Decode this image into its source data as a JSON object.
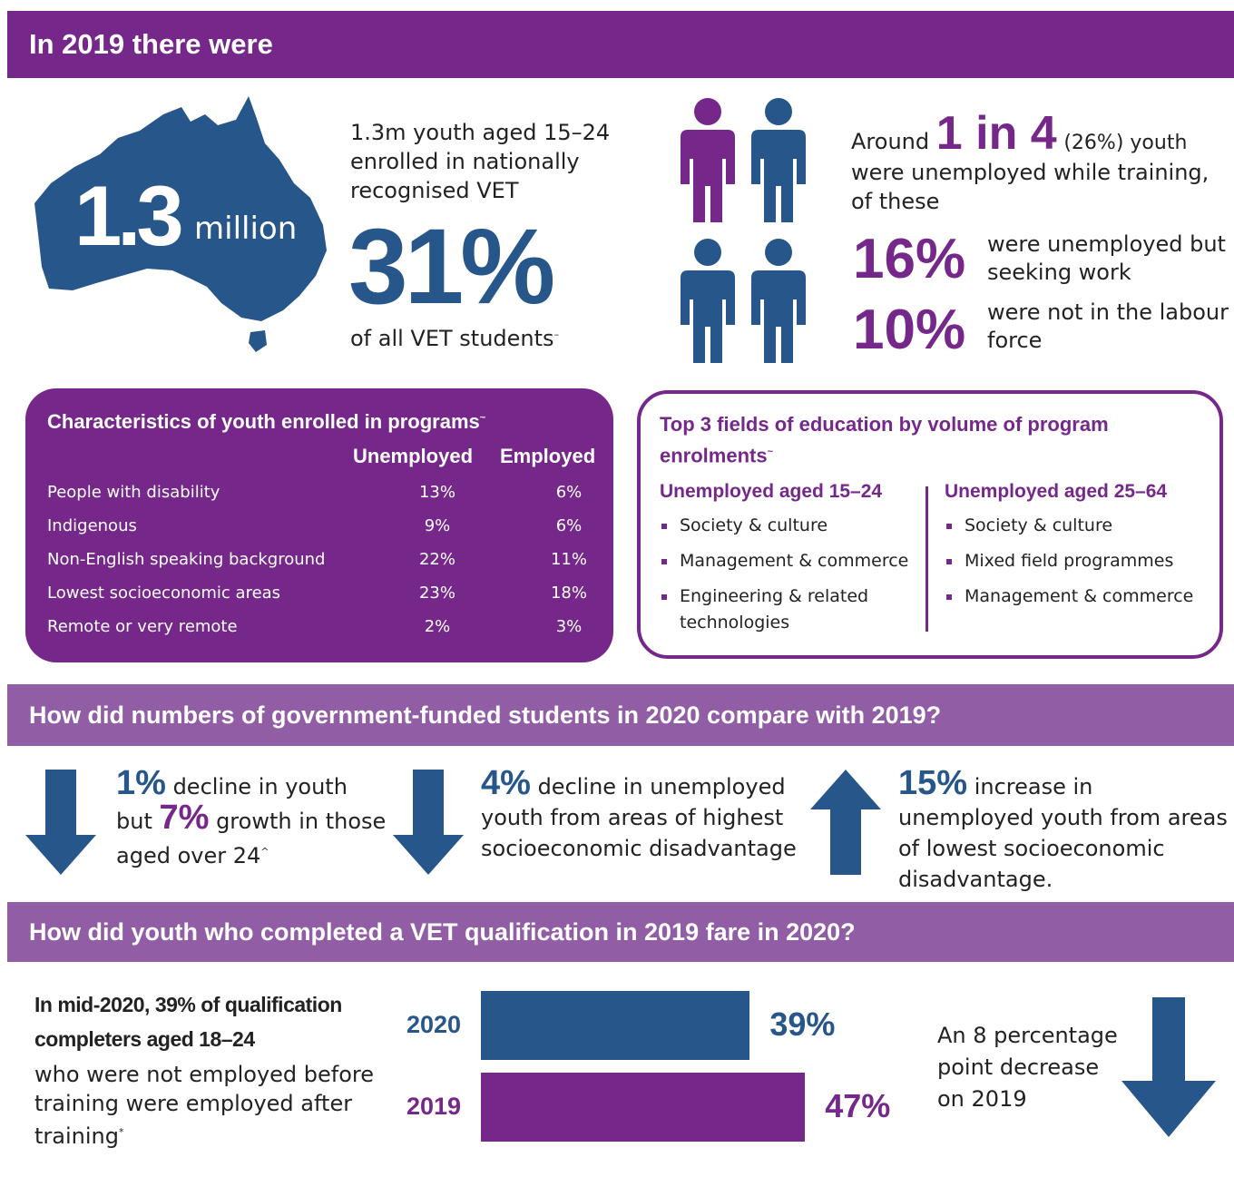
{
  "header": {
    "title": "In 2019 there were"
  },
  "summary": {
    "big_number": "1.3",
    "big_unit": "million",
    "text": "1.3m youth aged 15–24 enrolled in nationally recognised VET",
    "percent": "31%",
    "percent_caption": "of all VET students",
    "caption_mark": "–"
  },
  "unemployment": {
    "lead": "Around",
    "ratio": "1 in 4",
    "ratio_note": "(26%) youth",
    "text": "were unemployed while training, of these",
    "items": [
      {
        "value": "16%",
        "text": "were unemployed but seeking work"
      },
      {
        "value": "10%",
        "text": "were not in the labour force"
      }
    ]
  },
  "characteristics": {
    "title": "Characteristics of youth enrolled in programs",
    "mark": "~",
    "columns": [
      "Unemployed",
      "Employed"
    ],
    "rows": [
      [
        "People with disability",
        "13%",
        "6%"
      ],
      [
        "Indigenous",
        "9%",
        "6%"
      ],
      [
        "Non-English speaking background",
        "22%",
        "11%"
      ],
      [
        "Lowest socioeconomic areas",
        "23%",
        "18%"
      ],
      [
        "Remote or very remote",
        "2%",
        "3%"
      ]
    ]
  },
  "fields": {
    "title": "Top 3 fields of education by volume of program enrolments",
    "mark": "~",
    "groups": [
      {
        "title": "Unemployed aged 15–24",
        "items": [
          "Society & culture",
          "Management & commerce",
          "Engineering & related technologies"
        ]
      },
      {
        "title": "Unemployed aged 25–64",
        "items": [
          "Society & culture",
          "Mixed field programmes",
          "Management & commerce"
        ]
      }
    ]
  },
  "comparison": {
    "title": "How did numbers of government-funded students in 2020 compare with 2019?",
    "items": [
      {
        "value": "1%",
        "text": "decline in youth but",
        "value2": "7%",
        "text2": "growth in those aged over 24",
        "mark": "^"
      },
      {
        "value": "4%",
        "text": "decline in unemployed youth from areas of highest socioeconomic disadvantage"
      },
      {
        "value": "15%",
        "text": "increase in unemployed youth from areas of lowest socioeconomic disadvantage."
      }
    ]
  },
  "outcomes": {
    "title": "How did youth who completed a VET qualification in 2019 fare in 2020?",
    "bold_text": "In mid-2020, 39% of qualification completers aged 18–24",
    "text": "who were not employed before training were employed after training",
    "mark": "*",
    "note": "An 8 percentage point decrease on 2019"
  },
  "chart_data": {
    "type": "bar",
    "categories": [
      "2020",
      "2019"
    ],
    "values": [
      39,
      47
    ],
    "value_labels": [
      "39%",
      "47%"
    ],
    "colors": [
      "#27568a",
      "#76288a"
    ]
  }
}
